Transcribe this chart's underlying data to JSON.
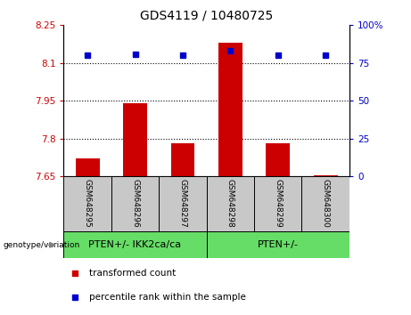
{
  "title": "GDS4119 / 10480725",
  "samples": [
    "GSM648295",
    "GSM648296",
    "GSM648297",
    "GSM648298",
    "GSM648299",
    "GSM648300"
  ],
  "bar_values": [
    7.72,
    7.94,
    7.78,
    8.18,
    7.78,
    7.655
  ],
  "dot_values": [
    80,
    81,
    80,
    83,
    80,
    80
  ],
  "ylim_left": [
    7.65,
    8.25
  ],
  "ylim_right": [
    0,
    100
  ],
  "yticks_left": [
    7.65,
    7.8,
    7.95,
    8.1,
    8.25
  ],
  "yticks_right": [
    0,
    25,
    50,
    75,
    100
  ],
  "ytick_labels_left": [
    "7.65",
    "7.8",
    "7.95",
    "8.1",
    "8.25"
  ],
  "ytick_labels_right": [
    "0",
    "25",
    "50",
    "75",
    "100%"
  ],
  "hlines": [
    8.1,
    7.95,
    7.8
  ],
  "bar_color": "#cc0000",
  "dot_color": "#0000cc",
  "bar_bottom": 7.65,
  "groups": [
    {
      "label": "PTEN+/- IKK2ca/ca",
      "indices": [
        0,
        1,
        2
      ],
      "color": "#66dd66"
    },
    {
      "label": "PTEN+/-",
      "indices": [
        3,
        4,
        5
      ],
      "color": "#66dd66"
    }
  ],
  "group_label_prefix": "genotype/variation",
  "legend_items": [
    {
      "label": "transformed count",
      "color": "#cc0000"
    },
    {
      "label": "percentile rank within the sample",
      "color": "#0000cc"
    }
  ],
  "tick_color_left": "#cc0000",
  "tick_color_right": "#0000cc",
  "sample_bg_color": "#c8c8c8"
}
